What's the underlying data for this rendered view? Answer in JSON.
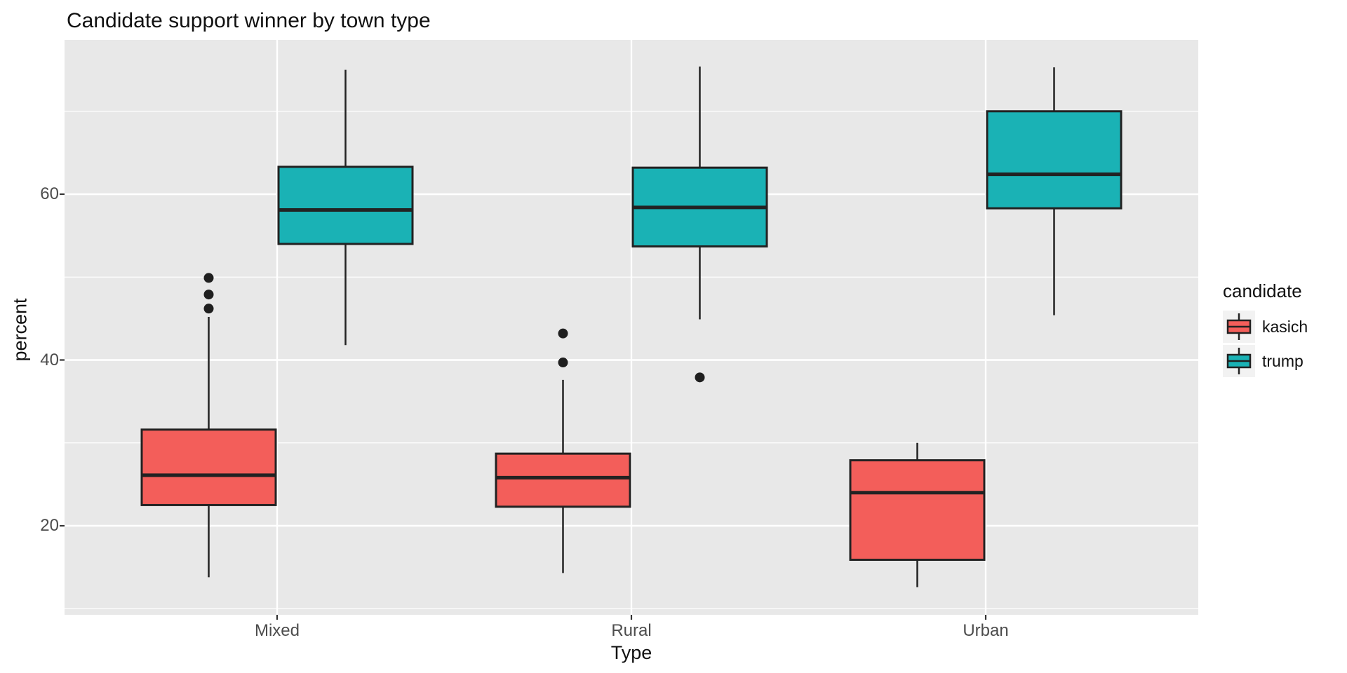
{
  "title": "Candidate support winner by town type",
  "axes": {
    "x_title": "Type",
    "y_title": "percent"
  },
  "legend": {
    "title": "candidate",
    "entries": [
      {
        "label": "kasich",
        "color": "#F35E5A"
      },
      {
        "label": "trump",
        "color": "#1AB2B5"
      }
    ]
  },
  "colors": {
    "panel_bg": "#E8E8E8",
    "grid": "#FFFFFF",
    "box_border": "#222222",
    "outlier": "#1F1F1F",
    "tick_mark": "#333333",
    "tick_text": "#4D4D4D",
    "legend_key_bg": "#F2F2F2"
  },
  "chart_data": {
    "type": "boxplot",
    "title": "Candidate support winner by town type",
    "xlabel": "Type",
    "ylabel": "percent",
    "categories": [
      "Mixed",
      "Rural",
      "Urban"
    ],
    "y_ticks": [
      20,
      40,
      60
    ],
    "y_minor_ticks": [
      10,
      30,
      50,
      70
    ],
    "ylim": [
      9.3,
      78.6
    ],
    "grid": true,
    "legend_title": "candidate",
    "legend_position": "right",
    "series": [
      {
        "name": "kasich",
        "color": "#F35E5A",
        "boxes": [
          {
            "category": "Mixed",
            "whisker_low": 13.8,
            "q1": 22.5,
            "median": 26.1,
            "q3": 31.6,
            "whisker_high": 45.2,
            "outliers": [
              46.2,
              47.9,
              49.9
            ]
          },
          {
            "category": "Rural",
            "whisker_low": 14.3,
            "q1": 22.3,
            "median": 25.8,
            "q3": 28.7,
            "whisker_high": 37.6,
            "outliers": [
              39.7,
              43.2
            ]
          },
          {
            "category": "Urban",
            "whisker_low": 12.6,
            "q1": 15.9,
            "median": 24.0,
            "q3": 27.9,
            "whisker_high": 30.0,
            "outliers": []
          }
        ]
      },
      {
        "name": "trump",
        "color": "#1AB2B5",
        "boxes": [
          {
            "category": "Mixed",
            "whisker_low": 41.8,
            "q1": 54.0,
            "median": 58.1,
            "q3": 63.3,
            "whisker_high": 75.0,
            "outliers": []
          },
          {
            "category": "Rural",
            "whisker_low": 44.9,
            "q1": 53.7,
            "median": 58.4,
            "q3": 63.2,
            "whisker_high": 75.4,
            "outliers": [
              37.9
            ]
          },
          {
            "category": "Urban",
            "whisker_low": 45.4,
            "q1": 58.3,
            "median": 62.4,
            "q3": 70.0,
            "whisker_high": 75.3,
            "outliers": []
          }
        ]
      }
    ]
  }
}
